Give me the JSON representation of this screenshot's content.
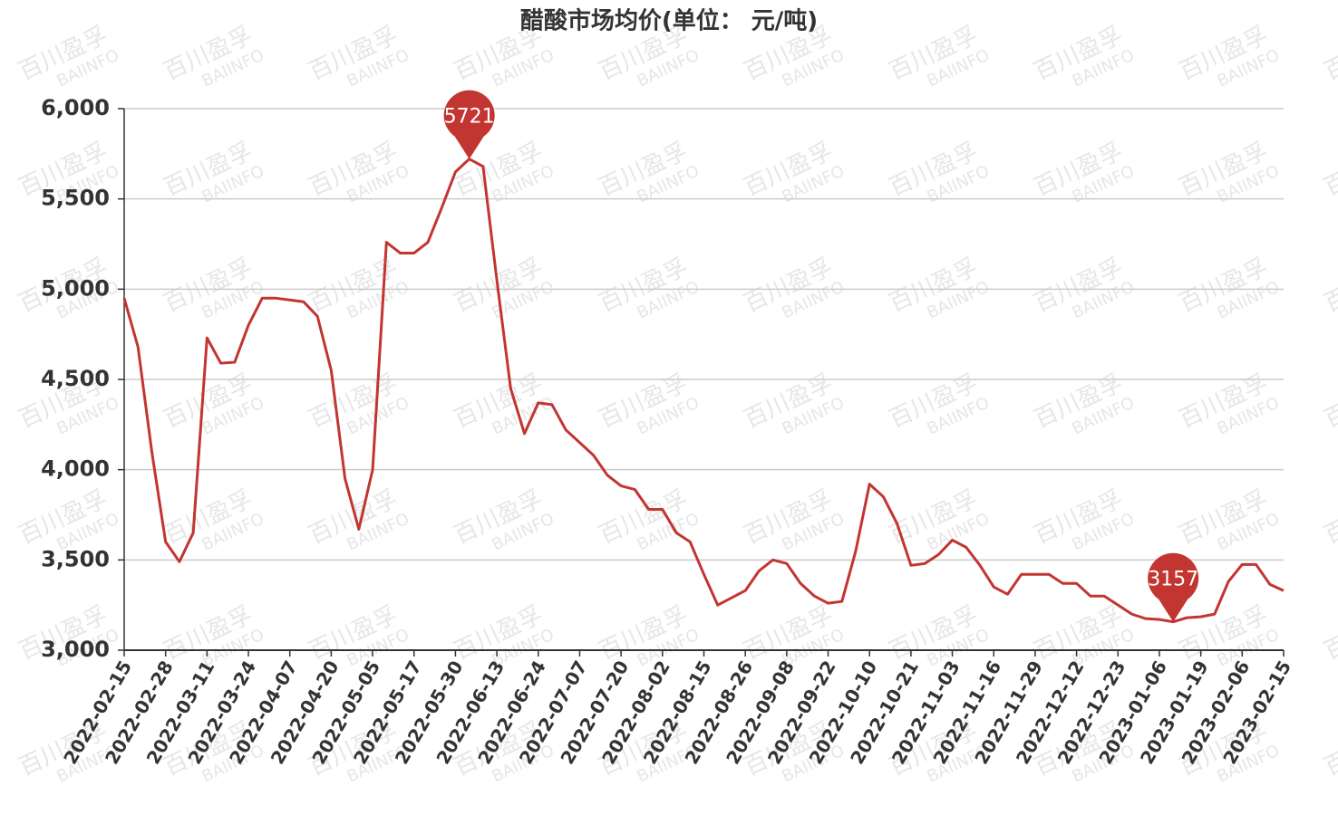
{
  "chart_data": {
    "type": "line",
    "title": "醋酸市场均价(单位： 元/吨)",
    "watermark": [
      "百川盈孚",
      "BAIINFO"
    ],
    "categories": [
      "2022-02-15",
      null,
      null,
      "2022-02-28",
      null,
      null,
      "2022-03-11",
      null,
      null,
      "2022-03-24",
      null,
      null,
      "2022-04-07",
      null,
      null,
      "2022-04-20",
      null,
      null,
      "2022-05-05",
      null,
      null,
      "2022-05-17",
      null,
      null,
      "2022-05-30",
      null,
      null,
      "2022-06-13",
      null,
      null,
      "2022-06-24",
      null,
      null,
      "2022-07-07",
      null,
      null,
      "2022-07-20",
      null,
      null,
      "2022-08-02",
      null,
      null,
      "2022-08-15",
      null,
      null,
      "2022-08-26",
      null,
      null,
      "2022-09-08",
      null,
      null,
      "2022-09-22",
      null,
      null,
      "2022-10-10",
      null,
      null,
      "2022-10-21",
      null,
      null,
      "2022-11-03",
      null,
      null,
      "2022-11-16",
      null,
      null,
      "2022-11-29",
      null,
      null,
      "2022-12-12",
      null,
      null,
      "2022-12-23",
      null,
      null,
      "2023-01-06",
      null,
      null,
      "2023-01-19",
      null,
      null,
      "2023-02-06",
      null,
      null,
      "2023-02-15"
    ],
    "series": [
      {
        "name": "醋酸市场均价",
        "color": "#c23531",
        "values": [
          4950,
          4680,
          4100,
          3600,
          3490,
          3650,
          4730,
          4590,
          4595,
          4800,
          4950,
          4950,
          4940,
          4930,
          4850,
          4550,
          3950,
          3670,
          4000,
          5260,
          5200,
          5200,
          5260,
          5450,
          5650,
          5721,
          5680,
          5050,
          4450,
          4200,
          4370,
          4360,
          4220,
          4150,
          4080,
          3970,
          3910,
          3890,
          3780,
          3780,
          3650,
          3600,
          3420,
          3250,
          3290,
          3330,
          3440,
          3500,
          3480,
          3370,
          3300,
          3260,
          3270,
          3550,
          3920,
          3850,
          3700,
          3470,
          3480,
          3530,
          3610,
          3570,
          3470,
          3350,
          3310,
          3420,
          3420,
          3420,
          3370,
          3370,
          3300,
          3300,
          3250,
          3200,
          3175,
          3170,
          3157,
          3180,
          3185,
          3200,
          3380,
          3475,
          3475,
          3365,
          3330
        ]
      }
    ],
    "markers": [
      25,
      76
    ],
    "ylim": [
      3000,
      6000
    ],
    "yticks": [
      {
        "value": 3000,
        "label": "3,000"
      },
      {
        "value": 3500,
        "label": "3,500"
      },
      {
        "value": 4000,
        "label": "4,000"
      },
      {
        "value": 4500,
        "label": "4,500"
      },
      {
        "value": 5000,
        "label": "5,000"
      },
      {
        "value": 5500,
        "label": "5,500"
      },
      {
        "value": 6000,
        "label": "6,000"
      }
    ],
    "grid": true
  }
}
